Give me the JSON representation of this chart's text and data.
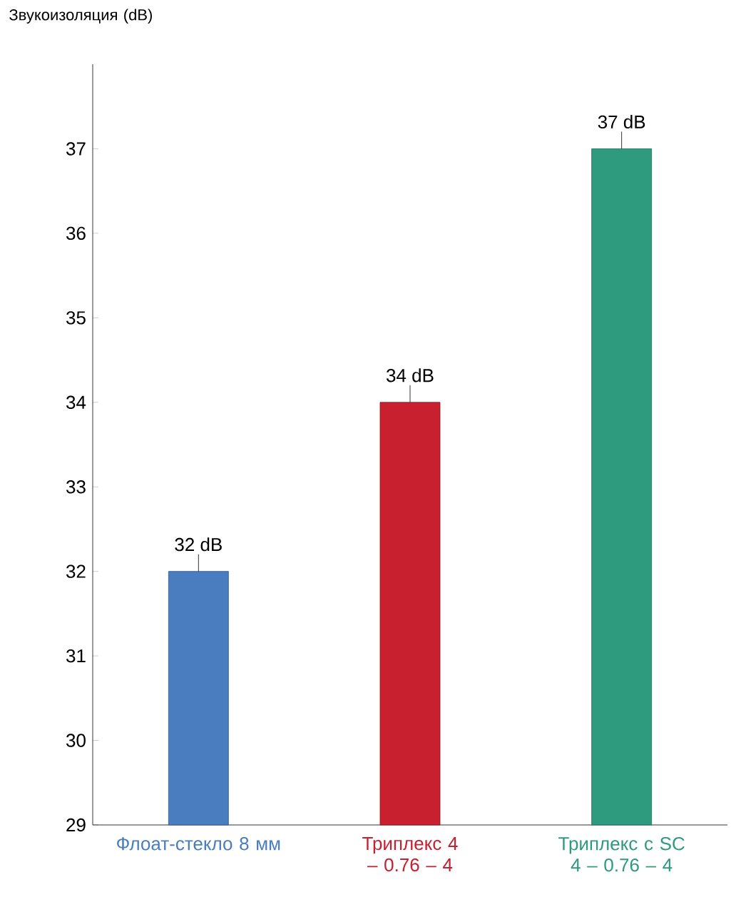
{
  "chart_data": {
    "type": "bar",
    "ylabel": "Звукоизоляция (dB)",
    "categories": [
      "Флоат-стекло 8 мм",
      "Триплекс 4 – 0.76 – 4",
      "Триплекс с SC 4 – 0.76 – 4"
    ],
    "values": [
      32,
      34,
      37
    ],
    "colors": [
      "#4a7cc0",
      "#c8202e",
      "#2e9a7e"
    ],
    "value_labels": [
      "32 dB",
      "34 dB",
      "37 dB"
    ],
    "ylim": [
      29,
      38
    ],
    "yticks": [
      29,
      30,
      31,
      32,
      33,
      34,
      35,
      36,
      37
    ],
    "grid": false
  }
}
